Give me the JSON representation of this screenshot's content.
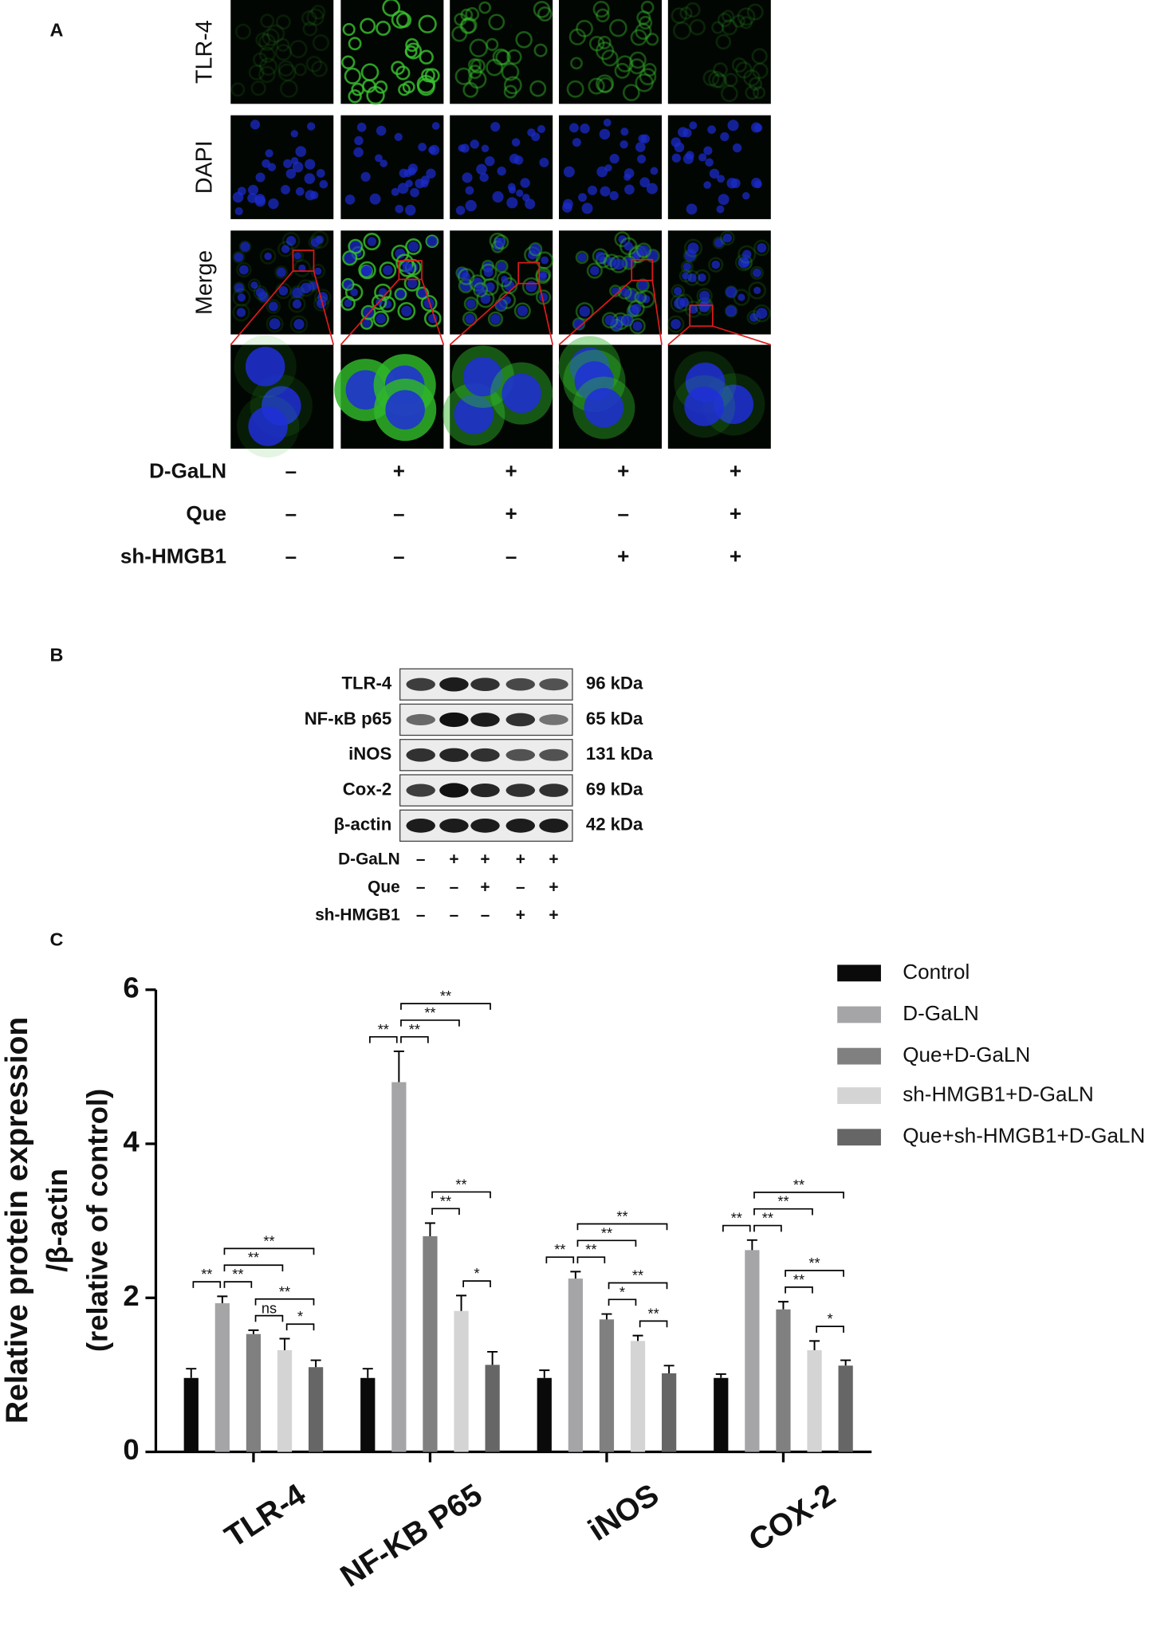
{
  "panel_labels": [
    "A",
    "B",
    "C"
  ],
  "panel_a": {
    "row_labels": [
      "TLR-4",
      "DAPI",
      "Merge"
    ],
    "conditions": [
      {
        "name": "D-GaLN",
        "signs": [
          "–",
          "+",
          "+",
          "+",
          "+"
        ]
      },
      {
        "name": "Que",
        "signs": [
          "–",
          "–",
          "+",
          "–",
          "+"
        ]
      },
      {
        "name": "sh-HMGB1",
        "signs": [
          "–",
          "–",
          "–",
          "+",
          "+"
        ]
      }
    ]
  },
  "panel_b": {
    "bands": [
      {
        "protein": "TLR-4",
        "size": "96 kDa"
      },
      {
        "protein": "NF-κB p65",
        "size": "65 kDa"
      },
      {
        "protein": "iNOS",
        "size": "131 kDa"
      },
      {
        "protein": "Cox-2",
        "size": "69 kDa"
      },
      {
        "protein": "β-actin",
        "size": "42 kDa"
      }
    ],
    "conditions": [
      {
        "name": "D-GaLN",
        "signs": [
          "–",
          "+",
          "+",
          "+",
          "+"
        ]
      },
      {
        "name": "Que",
        "signs": [
          "–",
          "–",
          "+",
          "–",
          "+"
        ]
      },
      {
        "name": "sh-HMGB1",
        "signs": [
          "–",
          "–",
          "–",
          "+",
          "+"
        ]
      }
    ]
  },
  "chart_data": {
    "type": "bar",
    "ylabel": [
      "Relative protein expression",
      "/β-actin",
      "(relative of control)"
    ],
    "categories": [
      "TLR-4",
      "NF-KB P65",
      "iNOS",
      "COX-2"
    ],
    "series": [
      {
        "name": "Control",
        "color": "#0a0a0a",
        "values": [
          0.96,
          0.96,
          0.96,
          0.96
        ],
        "errors": [
          0.12,
          0.12,
          0.1,
          0.05
        ]
      },
      {
        "name": "D-GaLN",
        "color": "#a5a5a8",
        "values": [
          1.93,
          4.8,
          2.25,
          2.62
        ],
        "errors": [
          0.09,
          0.4,
          0.09,
          0.13
        ]
      },
      {
        "name": "Que+D-GaLN",
        "color": "#808080",
        "values": [
          1.53,
          2.8,
          1.72,
          1.85
        ],
        "errors": [
          0.05,
          0.17,
          0.07,
          0.1
        ]
      },
      {
        "name": "sh-HMGB1+D-GaLN",
        "color": "#d4d4d4",
        "values": [
          1.32,
          1.83,
          1.44,
          1.32
        ],
        "errors": [
          0.15,
          0.2,
          0.07,
          0.12
        ]
      },
      {
        "name": "Que+sh-HMGB1+D-GaLN",
        "color": "#666666",
        "values": [
          1.1,
          1.13,
          1.02,
          1.12
        ],
        "errors": [
          0.09,
          0.17,
          0.1,
          0.07
        ]
      }
    ],
    "ylim": [
      0,
      6
    ],
    "yticks": [
      0,
      2,
      4,
      6
    ],
    "significance": [
      [
        {
          "pair": [
            3,
            4
          ],
          "label": "*"
        },
        {
          "pair": [
            2,
            3
          ],
          "label": "ns"
        },
        {
          "pair": [
            0,
            1
          ],
          "label": "**"
        },
        {
          "pair": [
            1,
            2
          ],
          "label": "**"
        },
        {
          "pair": [
            2,
            4
          ],
          "label": "**"
        },
        {
          "pair": [
            1,
            3
          ],
          "label": "**"
        },
        {
          "pair": [
            1,
            4
          ],
          "label": "**"
        }
      ],
      [
        {
          "pair": [
            0,
            1
          ],
          "label": "**"
        },
        {
          "pair": [
            1,
            2
          ],
          "label": "**"
        },
        {
          "pair": [
            3,
            4
          ],
          "label": "*"
        },
        {
          "pair": [
            2,
            3
          ],
          "label": "**"
        },
        {
          "pair": [
            2,
            4
          ],
          "label": "**"
        },
        {
          "pair": [
            1,
            3
          ],
          "label": "**"
        },
        {
          "pair": [
            1,
            4
          ],
          "label": "**"
        }
      ],
      [
        {
          "pair": [
            2,
            3
          ],
          "label": "*"
        },
        {
          "pair": [
            3,
            4
          ],
          "label": "**"
        },
        {
          "pair": [
            0,
            1
          ],
          "label": "**"
        },
        {
          "pair": [
            1,
            2
          ],
          "label": "**"
        },
        {
          "pair": [
            2,
            4
          ],
          "label": "**"
        },
        {
          "pair": [
            1,
            3
          ],
          "label": "**"
        },
        {
          "pair": [
            1,
            4
          ],
          "label": "**"
        }
      ],
      [
        {
          "pair": [
            3,
            4
          ],
          "label": "*"
        },
        {
          "pair": [
            0,
            1
          ],
          "label": "**"
        },
        {
          "pair": [
            1,
            2
          ],
          "label": "**"
        },
        {
          "pair": [
            2,
            3
          ],
          "label": "**"
        },
        {
          "pair": [
            2,
            4
          ],
          "label": "**"
        },
        {
          "pair": [
            1,
            3
          ],
          "label": "**"
        },
        {
          "pair": [
            1,
            4
          ],
          "label": "**"
        }
      ]
    ]
  }
}
